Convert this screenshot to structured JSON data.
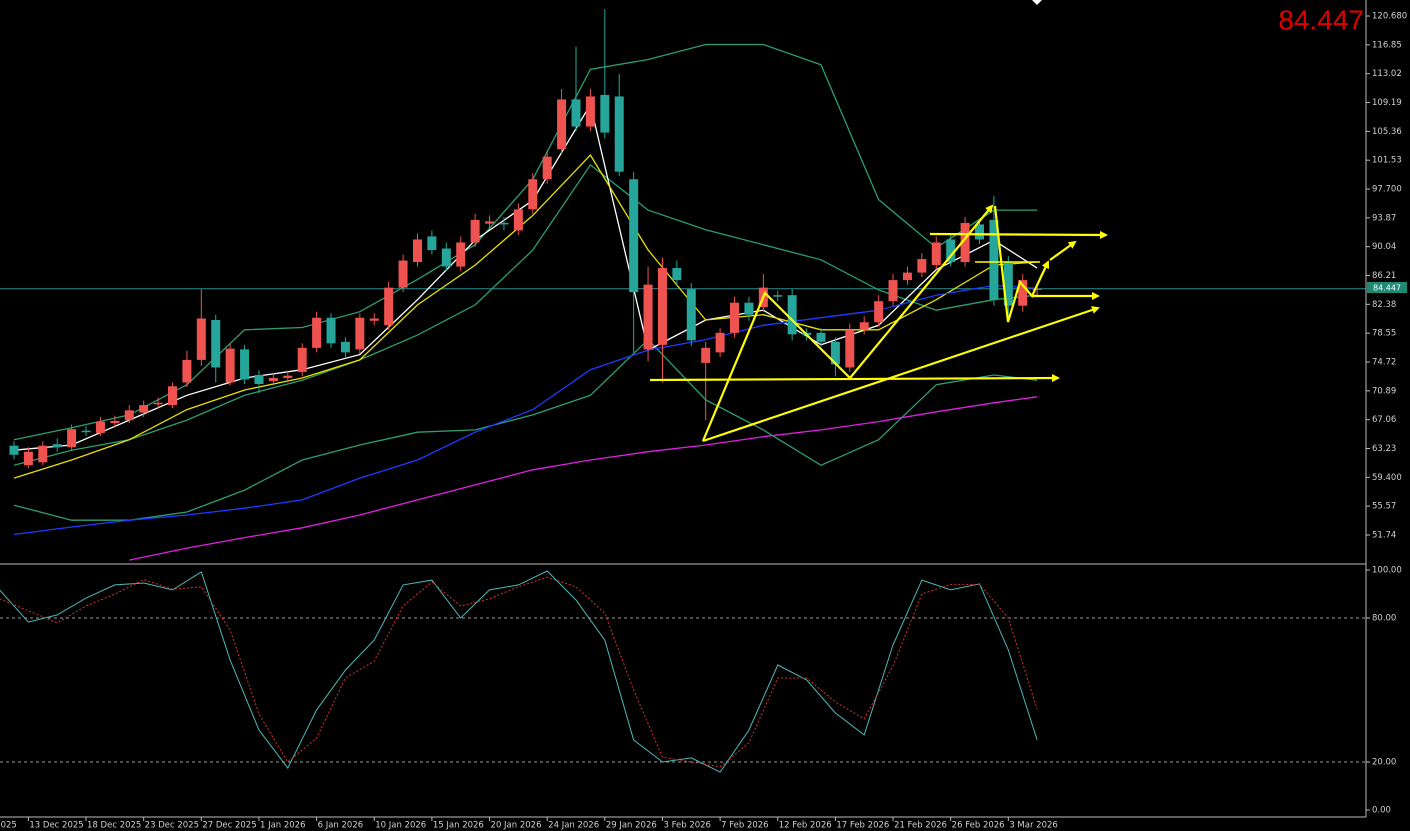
{
  "chart_data": [
    {
      "type": "candlestick",
      "last_price": 84.447,
      "up_color": "#ef5350",
      "down_color": "#26a69a",
      "xlim": [
        -0.97,
        93.82
      ],
      "xticks": [
        {
          "value": -1,
          "label": "025"
        },
        {
          "value": 1,
          "label": "13 Dec 2025"
        },
        {
          "value": 5,
          "label": "18 Dec 2025"
        },
        {
          "value": 9,
          "label": "23 Dec 2025"
        },
        {
          "value": 13,
          "label": "27 Dec 2025"
        },
        {
          "value": 17,
          "label": "1 Jan 2026"
        },
        {
          "value": 21,
          "label": "6 Jan 2026"
        },
        {
          "value": 25,
          "label": "10 Jan 2026"
        },
        {
          "value": 29,
          "label": "15 Jan 2026"
        },
        {
          "value": 33,
          "label": "20 Jan 2026"
        },
        {
          "value": 37,
          "label": "24 Jan 2026"
        },
        {
          "value": 41,
          "label": "29 Jan 2026"
        },
        {
          "value": 45,
          "label": "3 Feb 2026"
        },
        {
          "value": 49,
          "label": "7 Feb 2026"
        },
        {
          "value": 53,
          "label": "12 Feb 2026"
        },
        {
          "value": 57,
          "label": "17 Feb 2026"
        },
        {
          "value": 61,
          "label": "21 Feb 2026"
        },
        {
          "value": 65,
          "label": "26 Feb 2026"
        },
        {
          "value": 69,
          "label": "3 Mar 2026"
        }
      ],
      "ylim": [
        48.02,
        122.81
      ],
      "yticks": [
        {
          "value": 120.68,
          "label": "120.680"
        },
        116.85,
        113.02,
        109.19,
        105.36,
        101.53,
        {
          "value": 97.7,
          "label": "97.700"
        },
        93.87,
        90.04,
        86.21,
        82.38,
        78.55,
        74.72,
        70.89,
        67.06,
        63.23,
        {
          "value": 59.4,
          "label": "59.400"
        },
        55.57,
        51.74
      ],
      "open": [
        63.6,
        61.0,
        61.4,
        63.8,
        63.4,
        65.6,
        65.3,
        66.6,
        67.0,
        68.0,
        69.1,
        69.0,
        72.0,
        75.0,
        80.3,
        72.0,
        76.4,
        73.0,
        72.2,
        72.6,
        73.4,
        76.6,
        80.6,
        77.4,
        76.4,
        80.2,
        79.6,
        84.6,
        88.0,
        91.4,
        89.8,
        87.4,
        90.6,
        93.1,
        93.2,
        92.2,
        95.0,
        99.0,
        103.0,
        109.6,
        106.0,
        110.2,
        110.0,
        99.0,
        76.4,
        77.0,
        87.2,
        84.4,
        74.6,
        76.0,
        78.6,
        82.6,
        82.0,
        83.6,
        83.6,
        78.6,
        78.6,
        77.4,
        74.0,
        79.0,
        80.0,
        82.8,
        85.6,
        86.6,
        87.6,
        91.0,
        88.0,
        93.0,
        93.6,
        88.0,
        82.2,
        84.3
      ],
      "high": [
        64.2,
        63.4,
        64.2,
        64.6,
        66.4,
        66.2,
        67.4,
        67.6,
        69.0,
        69.6,
        70.0,
        72.0,
        76.2,
        84.4,
        81.0,
        77.2,
        77.0,
        73.6,
        73.2,
        73.6,
        77.2,
        81.4,
        81.2,
        78.0,
        81.2,
        81.2,
        85.4,
        89.0,
        91.8,
        92.2,
        90.6,
        91.4,
        94.4,
        94.2,
        94.0,
        95.8,
        99.8,
        102.8,
        111.0,
        116.6,
        111.0,
        121.6,
        113.0,
        100.0,
        87.4,
        88.6,
        88.2,
        85.2,
        77.4,
        79.2,
        83.4,
        83.4,
        86.4,
        84.2,
        84.4,
        79.2,
        79.2,
        78.0,
        79.8,
        80.8,
        83.6,
        86.4,
        87.4,
        89.2,
        91.4,
        91.8,
        94.0,
        93.8,
        96.8,
        88.8,
        86.4,
        85.2
      ],
      "low": [
        61.8,
        60.6,
        61.0,
        62.8,
        63.0,
        64.9,
        64.9,
        66.0,
        66.6,
        67.4,
        68.6,
        68.6,
        71.4,
        74.2,
        72.0,
        71.6,
        71.8,
        70.6,
        71.6,
        72.0,
        72.8,
        76.0,
        76.6,
        75.2,
        75.8,
        79.6,
        79.0,
        84.0,
        87.4,
        89.0,
        86.8,
        86.8,
        90.0,
        92.4,
        92.2,
        91.6,
        94.4,
        98.4,
        102.4,
        105.4,
        105.4,
        104.4,
        99.4,
        76.0,
        74.8,
        72.0,
        84.8,
        76.8,
        67.0,
        75.4,
        78.0,
        80.2,
        81.4,
        82.8,
        77.6,
        77.6,
        76.8,
        72.8,
        73.4,
        78.4,
        79.4,
        82.2,
        85.0,
        86.0,
        87.0,
        87.4,
        87.4,
        90.4,
        82.2,
        80.8,
        81.4,
        83.6
      ],
      "close": [
        62.4,
        62.8,
        63.6,
        63.4,
        65.8,
        65.4,
        66.8,
        66.9,
        68.3,
        69.0,
        69.3,
        71.5,
        75.0,
        80.5,
        74.0,
        76.5,
        72.4,
        71.8,
        72.6,
        72.9,
        76.6,
        80.6,
        77.2,
        76.0,
        80.6,
        80.5,
        84.6,
        88.2,
        91.0,
        89.6,
        87.4,
        90.6,
        93.6,
        93.4,
        93.0,
        95.0,
        99.0,
        102.0,
        109.6,
        106.0,
        110.0,
        105.2,
        100.0,
        84.0,
        85.0,
        87.2,
        85.6,
        77.6,
        76.6,
        78.6,
        82.6,
        81.0,
        84.6,
        83.4,
        78.4,
        78.3,
        77.4,
        74.4,
        79.0,
        80.0,
        82.8,
        85.6,
        86.6,
        88.4,
        90.6,
        88.0,
        93.2,
        91.0,
        83.0,
        82.2,
        85.6,
        84.447
      ],
      "lines_x": [
        0,
        4,
        8,
        12,
        16,
        20,
        24,
        28,
        32,
        36,
        40,
        44,
        48,
        52,
        56,
        60,
        64,
        68,
        71
      ],
      "lines": [
        {
          "color": "#2e9e6e",
          "values": [
            64.4,
            66.0,
            67.7,
            71.7,
            79.0,
            79.3,
            81.4,
            85.7,
            90.3,
            99.0,
            113.6,
            114.9,
            116.9,
            116.9,
            114.2,
            96.3,
            89.9,
            94.9,
            94.9
          ]
        },
        {
          "color": "#2e9e6e",
          "values": [
            61.0,
            63.0,
            64.4,
            67.0,
            70.3,
            72.3,
            75.0,
            78.3,
            82.3,
            89.6,
            100.9,
            94.9,
            92.3,
            90.3,
            88.3,
            84.3,
            81.6,
            83.0,
            83.6
          ]
        },
        {
          "color": "#2e9e6e",
          "values": [
            55.7,
            53.7,
            53.7,
            54.8,
            57.7,
            61.7,
            63.7,
            65.4,
            65.7,
            67.7,
            70.3,
            77.7,
            69.7,
            65.7,
            61.0,
            64.4,
            71.7,
            73.0,
            72.3
          ]
        },
        {
          "color": "#ffffff",
          "values": [
            63.0,
            63.7,
            67.0,
            70.3,
            72.6,
            73.7,
            75.7,
            83.0,
            90.9,
            96.2,
            108.9,
            76.3,
            80.3,
            81.6,
            77.0,
            79.6,
            87.0,
            90.9,
            87.2
          ]
        },
        {
          "color": "#e8e000",
          "values": [
            59.3,
            61.7,
            64.4,
            68.4,
            71.0,
            72.6,
            75.0,
            82.3,
            87.6,
            94.2,
            102.2,
            89.6,
            80.3,
            81.0,
            79.0,
            79.0,
            83.0,
            87.6,
            88.0
          ]
        },
        {
          "color": "#1f3cff",
          "values": [
            51.8,
            52.8,
            53.7,
            54.4,
            55.3,
            56.4,
            59.3,
            61.7,
            65.4,
            68.4,
            73.7,
            76.3,
            77.7,
            79.6,
            80.6,
            81.6,
            83.6,
            84.9,
            84.5
          ]
        },
        {
          "color": "#e020e0",
          "values": [
            null,
            null,
            48.4,
            50.0,
            51.4,
            52.7,
            54.4,
            56.4,
            58.4,
            60.4,
            61.7,
            62.8,
            63.7,
            64.8,
            65.7,
            66.8,
            68.1,
            69.3,
            70.1
          ]
        }
      ]
    },
    {
      "type": "oscillator",
      "x": [
        -1,
        1,
        3,
        5,
        7,
        9,
        11,
        13,
        15,
        17,
        19,
        21,
        23,
        25,
        27,
        29,
        31,
        33,
        35,
        37,
        39,
        41,
        43,
        45,
        47,
        49,
        51,
        53,
        55,
        57,
        59,
        61,
        63,
        65,
        67,
        69,
        71
      ],
      "ylim": [
        -3.33,
        102.08
      ],
      "yticks": [
        {
          "value": 100,
          "label": "100.00"
        },
        {
          "value": 80,
          "label": "80.00"
        },
        {
          "value": 20,
          "label": "20.00"
        },
        {
          "value": 0,
          "label": "0.00"
        }
      ],
      "levels": [
        80,
        20
      ],
      "series": [
        {
          "color": "#4fb8b8",
          "style": "solid",
          "values": [
            91.7,
            78.3,
            81.3,
            88.3,
            93.8,
            94.6,
            91.7,
            99.2,
            62.5,
            33.3,
            17.5,
            41.7,
            58.3,
            70.8,
            93.8,
            95.8,
            80.0,
            91.7,
            93.8,
            99.6,
            87.5,
            70.8,
            29.2,
            20.0,
            21.7,
            15.8,
            33.3,
            60.4,
            54.2,
            40.4,
            31.3,
            68.8,
            95.8,
            91.7,
            94.2,
            66.7,
            29.2
          ]
        },
        {
          "color": "#d83030",
          "style": "dotted",
          "values": [
            88,
            83,
            78,
            85,
            90,
            96,
            92,
            93,
            75,
            40,
            20,
            30,
            55,
            62,
            85,
            95,
            85,
            88,
            93,
            97,
            93,
            82,
            50,
            22,
            20,
            18,
            28,
            55,
            55,
            45,
            38,
            60,
            90,
            94,
            94,
            80,
            42
          ]
        }
      ]
    }
  ]
}
